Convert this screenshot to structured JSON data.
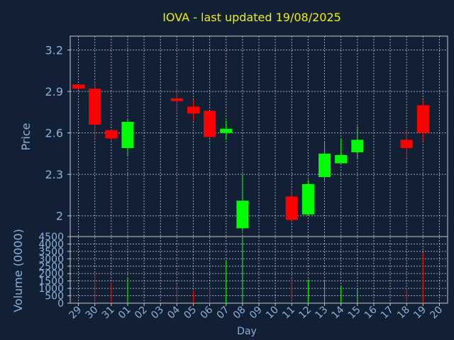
{
  "chart_data": {
    "type": "candlestick",
    "title": "IOVA - last updated 19/08/2025",
    "ylabel": "Price",
    "volume_ylabel": "Volume (0000)",
    "xlabel": "Day",
    "price_ylim": [
      1.85,
      3.3
    ],
    "price_ticks": [
      "3.2",
      "2.9",
      "2.6",
      "2.3",
      "2"
    ],
    "price_tick_values": [
      3.2,
      2.9,
      2.6,
      2.3,
      2.0
    ],
    "volume_ylim": [
      0,
      4500
    ],
    "volume_ticks": [
      "4500",
      "4000",
      "3500",
      "3000",
      "2500",
      "2000",
      "1500",
      "1000",
      "500",
      "0"
    ],
    "volume_tick_values": [
      4500,
      4000,
      3500,
      3000,
      2500,
      2000,
      1500,
      1000,
      500,
      0
    ],
    "x_tick_labels": [
      "29",
      "30",
      "31",
      "01",
      "02",
      "03",
      "04",
      "05",
      "06",
      "07",
      "08",
      "09",
      "10",
      "11",
      "12",
      "13",
      "14",
      "15",
      "16",
      "17",
      "18",
      "19",
      "20"
    ],
    "up_color": "#00ff00",
    "down_color": "#ff0000",
    "candles": [
      {
        "day": "29",
        "open": 2.95,
        "high": 2.95,
        "low": 2.91,
        "close": 2.92,
        "volume": 0
      },
      {
        "day": "30",
        "open": 2.92,
        "high": 2.97,
        "low": 2.56,
        "close": 2.66,
        "volume": 1950
      },
      {
        "day": "31",
        "open": 2.62,
        "high": 2.62,
        "low": 2.54,
        "close": 2.56,
        "volume": 1400
      },
      {
        "day": "01",
        "open": 2.49,
        "high": 2.7,
        "low": 2.44,
        "close": 2.68,
        "volume": 1750
      },
      {
        "day": "04",
        "open": 2.85,
        "high": 2.93,
        "low": 2.74,
        "close": 2.83,
        "volume": 1300
      },
      {
        "day": "05",
        "open": 2.79,
        "high": 2.84,
        "low": 2.69,
        "close": 2.74,
        "volume": 850
      },
      {
        "day": "06",
        "open": 2.76,
        "high": 2.76,
        "low": 2.56,
        "close": 2.57,
        "volume": 1150
      },
      {
        "day": "07",
        "open": 2.6,
        "high": 2.69,
        "low": 2.55,
        "close": 2.63,
        "volume": 2900
      },
      {
        "day": "08",
        "open": 1.91,
        "high": 2.3,
        "low": 1.89,
        "close": 2.11,
        "volume": 4500
      },
      {
        "day": "11",
        "open": 2.14,
        "high": 2.2,
        "low": 1.95,
        "close": 1.97,
        "volume": 1700
      },
      {
        "day": "12",
        "open": 2.01,
        "high": 2.26,
        "low": 2.0,
        "close": 2.23,
        "volume": 1600
      },
      {
        "day": "13",
        "open": 2.28,
        "high": 2.53,
        "low": 2.26,
        "close": 2.45,
        "volume": 1550
      },
      {
        "day": "14",
        "open": 2.38,
        "high": 2.56,
        "low": 2.38,
        "close": 2.44,
        "volume": 1150
      },
      {
        "day": "15",
        "open": 2.46,
        "high": 2.65,
        "low": 2.41,
        "close": 2.55,
        "volume": 950
      },
      {
        "day": "18",
        "open": 2.55,
        "high": 2.62,
        "low": 2.42,
        "close": 2.49,
        "volume": 1000
      },
      {
        "day": "19",
        "open": 2.8,
        "high": 2.84,
        "low": 2.54,
        "close": 2.6,
        "volume": 3400
      }
    ]
  }
}
